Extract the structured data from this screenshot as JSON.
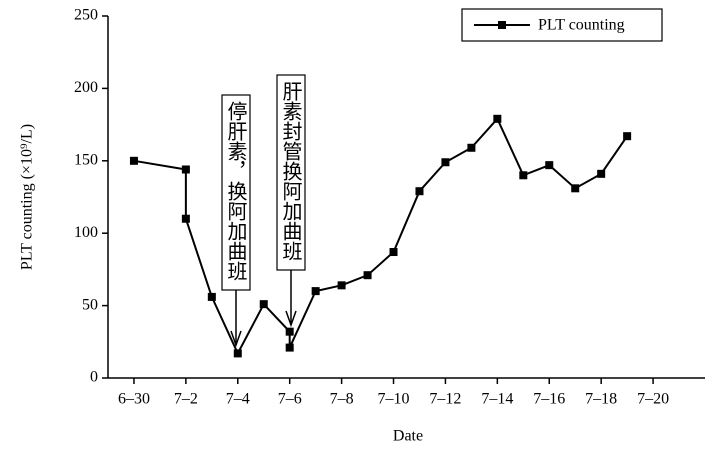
{
  "chart_data": {
    "type": "line",
    "x_label": "Date",
    "y_label": "PLT counting (×10⁹/L)",
    "x": [
      0,
      2,
      2,
      3,
      4,
      5,
      6,
      6,
      7,
      8,
      9,
      10,
      11,
      12,
      13,
      14,
      15,
      16,
      17,
      18,
      19
    ],
    "series": [
      {
        "name": "PLT counting",
        "color": "#000000",
        "values": [
          150,
          144,
          110,
          56,
          17,
          51,
          32,
          21,
          60,
          64,
          71,
          87,
          129,
          149,
          159,
          179,
          140,
          147,
          131,
          141,
          167
        ]
      }
    ],
    "xlim": [
      -1,
      22
    ],
    "xticks": [
      {
        "value": 0,
        "label": "6–30"
      },
      {
        "value": 2,
        "label": "7–2"
      },
      {
        "value": 4,
        "label": "7–4"
      },
      {
        "value": 6,
        "label": "7–6"
      },
      {
        "value": 8,
        "label": "7–8"
      },
      {
        "value": 10,
        "label": "7–10"
      },
      {
        "value": 12,
        "label": "7–12"
      },
      {
        "value": 14,
        "label": "7–14"
      },
      {
        "value": 16,
        "label": "7–16"
      },
      {
        "value": 18,
        "label": "7–18"
      },
      {
        "value": 20,
        "label": "7–20"
      }
    ],
    "ylim": [
      0,
      250
    ],
    "yticks": [
      0,
      50,
      100,
      150,
      200,
      250
    ],
    "legend": "upper right",
    "annotations": [
      "停肝素，换阿加曲班",
      "肝素封管换阿加曲班"
    ]
  }
}
